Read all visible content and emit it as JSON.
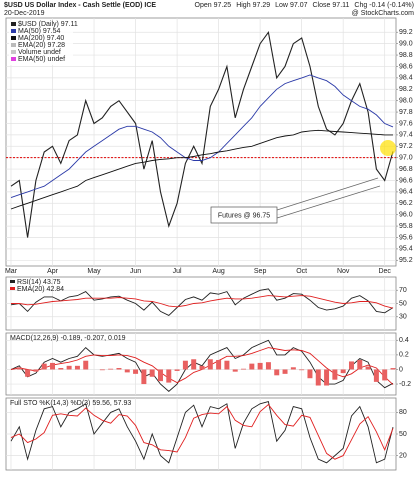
{
  "header": {
    "title": "$USD US Dollar Index - Cash Settle (EOD) ICE",
    "source": "@ StockCharts.com",
    "date": "20-Dec-2019",
    "quote": [
      {
        "label": "Open",
        "value": 97.25
      },
      {
        "label": "High",
        "value": 97.29
      },
      {
        "label": "Low",
        "value": 97.07
      },
      {
        "label": "Close",
        "value": 97.11
      },
      {
        "label": "Chg",
        "value": "-0.14 (-0.14%)"
      }
    ]
  },
  "chart_data": [
    {
      "type": "line",
      "categories": [
        "Mar",
        null,
        null,
        null,
        null,
        "Apr",
        null,
        null,
        null,
        null,
        "May",
        null,
        null,
        null,
        null,
        "Jun",
        null,
        null,
        null,
        null,
        "Jul",
        null,
        null,
        null,
        null,
        "Aug",
        null,
        null,
        null,
        null,
        "Sep",
        null,
        null,
        null,
        null,
        "Oct",
        null,
        null,
        null,
        null,
        "Nov",
        null,
        null,
        null,
        null,
        "Dec",
        null
      ],
      "series": [
        {
          "name": "$USD (Daily) 97.11",
          "color": "#222222",
          "values": [
            96.5,
            96.6,
            95.6,
            96.6,
            97.1,
            97.2,
            96.9,
            97.3,
            97.4,
            98.0,
            97.6,
            97.7,
            97.9,
            98.0,
            97.8,
            97.6,
            96.8,
            97.3,
            96.4,
            95.8,
            96.2,
            96.9,
            97.2,
            96.9,
            97.9,
            98.2,
            98.6,
            97.7,
            98.2,
            98.6,
            99.0,
            99.2,
            98.4,
            98.6,
            99.0,
            99.1,
            98.6,
            97.9,
            97.5,
            97.4,
            97.6,
            98.0,
            98.3,
            97.8,
            96.8,
            96.6,
            97.11
          ]
        },
        {
          "name": "MA(50) 97.54",
          "color": "#2b3aa8",
          "values": [
            96.3,
            96.35,
            96.4,
            96.45,
            96.5,
            96.6,
            96.7,
            96.8,
            96.95,
            97.1,
            97.2,
            97.3,
            97.4,
            97.5,
            97.55,
            97.55,
            97.5,
            97.45,
            97.35,
            97.2,
            97.1,
            97.0,
            96.95,
            96.95,
            97.0,
            97.1,
            97.25,
            97.4,
            97.55,
            97.7,
            97.9,
            98.05,
            98.2,
            98.3,
            98.35,
            98.4,
            98.45,
            98.4,
            98.35,
            98.25,
            98.1,
            98.0,
            97.9,
            97.85,
            97.75,
            97.6,
            97.54
          ]
        },
        {
          "name": "MA(200) 97.40",
          "color": "#111111",
          "values": [
            96.1,
            96.15,
            96.2,
            96.25,
            96.3,
            96.35,
            96.4,
            96.45,
            96.5,
            96.6,
            96.65,
            96.7,
            96.75,
            96.8,
            96.85,
            96.9,
            96.92,
            96.95,
            96.97,
            96.98,
            97.0,
            97.0,
            97.02,
            97.05,
            97.07,
            97.1,
            97.12,
            97.15,
            97.18,
            97.2,
            97.25,
            97.3,
            97.35,
            97.38,
            97.4,
            97.45,
            97.47,
            97.48,
            97.47,
            97.46,
            97.45,
            97.44,
            97.43,
            97.42,
            97.41,
            97.4,
            97.4
          ]
        }
      ],
      "legend_extra": [
        {
          "name": "EMA(20) 97.28",
          "color": "#bbbbbb"
        },
        {
          "name": "Volume undef",
          "color": "#c8c8c8"
        },
        {
          "name": "EMA(50) undef",
          "color": "#e040e0"
        }
      ],
      "hline": 97.0,
      "hline_color": "#e00000",
      "annotation": "Futures @ 96.75",
      "ylim": [
        95.1,
        99.45
      ],
      "yticks": [
        95.2,
        95.4,
        95.6,
        95.8,
        {
          "value": 96,
          "label": "96.0"
        },
        96.2,
        96.4,
        96.6,
        96.8,
        {
          "value": 97,
          "label": "97.0"
        },
        97.2,
        97.4,
        97.6,
        97.8,
        {
          "value": 98,
          "label": "98.0"
        },
        98.2,
        98.4,
        98.6,
        98.8,
        {
          "value": 99,
          "label": "99.0"
        },
        99.2
      ],
      "grid": true
    },
    {
      "type": "line",
      "series": [
        {
          "name": "RSI(14) 43.75",
          "color": "#222222",
          "values": [
            48,
            50,
            38,
            52,
            60,
            60,
            54,
            60,
            62,
            68,
            55,
            57,
            60,
            61,
            55,
            50,
            40,
            52,
            38,
            32,
            44,
            56,
            60,
            55,
            66,
            64,
            68,
            48,
            58,
            64,
            70,
            72,
            55,
            58,
            65,
            64,
            55,
            44,
            40,
            42,
            46,
            58,
            62,
            54,
            38,
            36,
            43.75
          ]
        },
        {
          "name": "EMA(20) 42.84",
          "color": "#e02020",
          "values": [
            50,
            50,
            48,
            49,
            51,
            53,
            54,
            55,
            56,
            58,
            58,
            58,
            58,
            59,
            58,
            57,
            54,
            53,
            50,
            46,
            45,
            47,
            50,
            51,
            54,
            56,
            58,
            57,
            57,
            58,
            60,
            62,
            61,
            60,
            61,
            62,
            61,
            58,
            55,
            52,
            50,
            51,
            53,
            53,
            51,
            46,
            42.84
          ]
        }
      ],
      "ylim": [
        10,
        90
      ],
      "yticks": [
        30,
        50,
        70
      ],
      "grid": true
    },
    {
      "type": "line",
      "title": "MACD(12,26,9) -0.189, -0.207, 0.019",
      "series": [
        {
          "color": "#222222",
          "values": [
            0,
            0.05,
            -0.1,
            -0.05,
            0.1,
            0.15,
            0.1,
            0.15,
            0.18,
            0.3,
            0.2,
            0.18,
            0.2,
            0.22,
            0.15,
            0.1,
            -0.1,
            -0.05,
            -0.2,
            -0.3,
            -0.2,
            0,
            0.1,
            0.05,
            0.2,
            0.25,
            0.3,
            0.15,
            0.2,
            0.3,
            0.35,
            0.4,
            0.2,
            0.2,
            0.3,
            0.25,
            0.1,
            -0.1,
            -0.2,
            -0.2,
            -0.15,
            0.05,
            0.15,
            0.1,
            -0.15,
            -0.25,
            -0.189
          ]
        },
        {
          "color": "#e02020",
          "values": [
            0,
            0.02,
            0,
            -0.02,
            0.02,
            0.06,
            0.08,
            0.1,
            0.13,
            0.18,
            0.2,
            0.19,
            0.19,
            0.2,
            0.19,
            0.16,
            0.1,
            0.05,
            -0.04,
            -0.12,
            -0.18,
            -0.12,
            -0.04,
            0,
            0.06,
            0.12,
            0.18,
            0.18,
            0.19,
            0.22,
            0.26,
            0.3,
            0.28,
            0.26,
            0.27,
            0.26,
            0.22,
            0.12,
            0.02,
            -0.06,
            -0.1,
            -0.06,
            0.02,
            0.06,
            0.02,
            -0.1,
            -0.207
          ]
        },
        {
          "color": "#e86060",
          "style": "histogram",
          "values": [
            0,
            0.03,
            -0.1,
            -0.03,
            0.08,
            0.09,
            0.02,
            0.05,
            0.05,
            0.12,
            0,
            -0.01,
            0.01,
            0.02,
            -0.04,
            -0.06,
            -0.2,
            -0.1,
            -0.16,
            -0.18,
            -0.02,
            0.12,
            0.14,
            0.05,
            0.14,
            0.13,
            0.12,
            -0.03,
            0.01,
            0.08,
            0.09,
            0.1,
            -0.08,
            -0.06,
            0.03,
            -0.01,
            -0.12,
            -0.22,
            -0.22,
            -0.14,
            -0.05,
            0.11,
            0.13,
            0.04,
            -0.17,
            -0.15,
            0.019
          ]
        }
      ],
      "ylim": [
        -0.35,
        0.5
      ],
      "yticks": [
        -0.2,
        0,
        0.2,
        0.4
      ],
      "grid": true
    },
    {
      "type": "line",
      "title": "Full STO %K(14,3) %D(3) 59.56, 57.93",
      "series": [
        {
          "color": "#222222",
          "values": [
            40,
            60,
            15,
            55,
            85,
            88,
            60,
            80,
            85,
            92,
            50,
            65,
            80,
            85,
            60,
            40,
            15,
            50,
            20,
            10,
            45,
            80,
            90,
            60,
            88,
            85,
            92,
            30,
            65,
            85,
            92,
            95,
            40,
            55,
            88,
            85,
            45,
            15,
            10,
            20,
            30,
            75,
            88,
            60,
            10,
            15,
            59.56
          ]
        },
        {
          "color": "#e02020",
          "values": [
            45,
            50,
            38,
            43,
            52,
            76,
            78,
            76,
            75,
            86,
            76,
            69,
            65,
            77,
            75,
            62,
            38,
            35,
            28,
            27,
            25,
            45,
            72,
            77,
            79,
            78,
            88,
            69,
            62,
            60,
            81,
            91,
            76,
            63,
            61,
            76,
            73,
            48,
            23,
            15,
            20,
            42,
            64,
            74,
            53,
            28,
            57.93
          ]
        }
      ],
      "ylim": [
        0,
        100
      ],
      "yticks": [
        20,
        50,
        80
      ],
      "grid": true
    }
  ]
}
